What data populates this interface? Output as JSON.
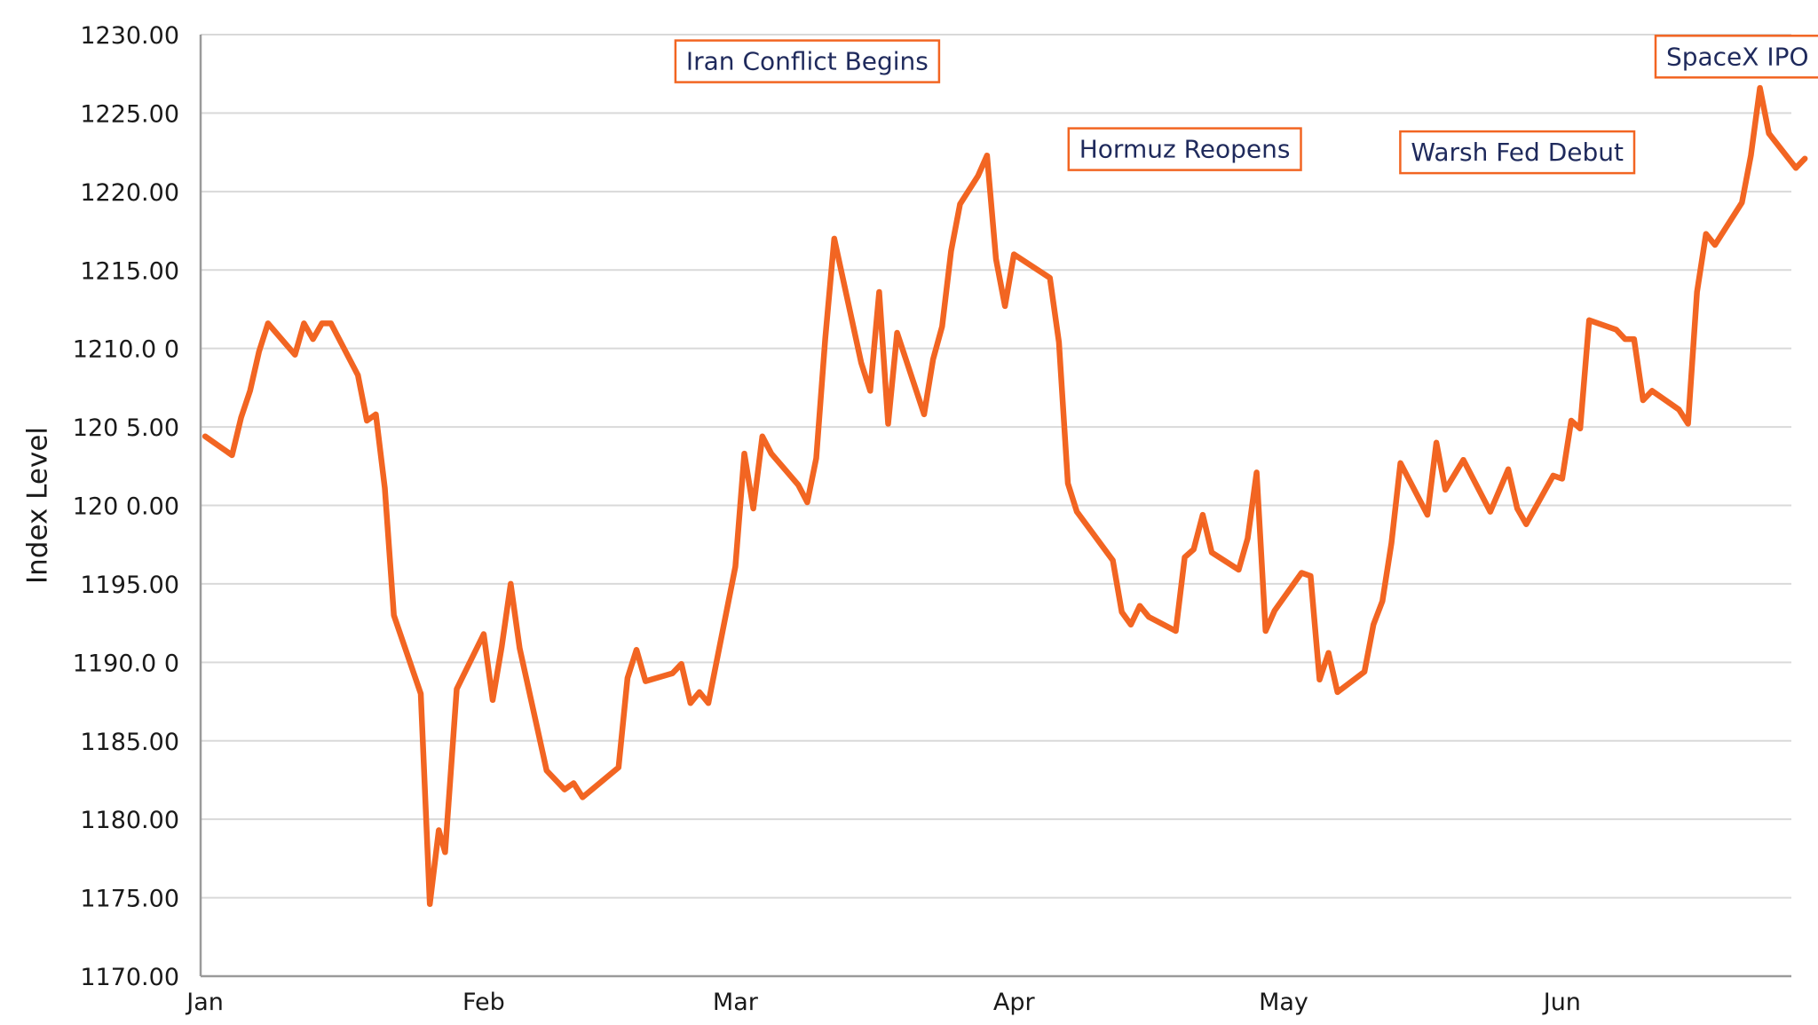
{
  "chart_data": {
    "type": "line",
    "title": "",
    "xlabel": "",
    "ylabel": "Index Level",
    "ylim": [
      1170,
      1230
    ],
    "y_ticks": [
      {
        "value": 1230,
        "label": "1230.00"
      },
      {
        "value": 1225,
        "label": "1225.00"
      },
      {
        "value": 1220,
        "label": "1220.00"
      },
      {
        "value": 1215,
        "label": "1215.00"
      },
      {
        "value": 1210,
        "label": "1210.0 0"
      },
      {
        "value": 1205,
        "label": "120 5.00"
      },
      {
        "value": 1200,
        "label": "120 0.00"
      },
      {
        "value": 1195,
        "label": "1195.00"
      },
      {
        "value": 1190,
        "label": "1190.0 0"
      },
      {
        "value": 1185,
        "label": "1185.00"
      },
      {
        "value": 1180,
        "label": "1180.00"
      },
      {
        "value": 1175,
        "label": "1175.00"
      },
      {
        "value": 1170,
        "label": "1170.00"
      }
    ],
    "x_ticks": [
      {
        "day": 0,
        "label": "Jan"
      },
      {
        "day": 31,
        "label": "Feb"
      },
      {
        "day": 59,
        "label": "Mar"
      },
      {
        "day": 90,
        "label": "Apr"
      },
      {
        "day": 120,
        "label": "May"
      },
      {
        "day": 151,
        "label": "Jun"
      }
    ],
    "xlim": [
      -0.5,
      176.5
    ],
    "grid": true,
    "series": [
      {
        "name": "",
        "color": "#f26522",
        "points": [
          [
            0,
            1204.4
          ],
          [
            3,
            1203.2
          ],
          [
            4,
            1205.6
          ],
          [
            5,
            1207.3
          ],
          [
            6,
            1209.8
          ],
          [
            7,
            1211.6
          ],
          [
            10,
            1209.6
          ],
          [
            11,
            1211.6
          ],
          [
            12,
            1210.6
          ],
          [
            13,
            1211.6
          ],
          [
            14,
            1211.6
          ],
          [
            17,
            1208.3
          ],
          [
            18,
            1205.4
          ],
          [
            19,
            1205.8
          ],
          [
            20,
            1201.1
          ],
          [
            21,
            1193.0
          ],
          [
            24,
            1188.0
          ],
          [
            25,
            1174.6
          ],
          [
            26,
            1179.3
          ],
          [
            26.7,
            1177.9
          ],
          [
            28,
            1188.3
          ],
          [
            31,
            1191.8
          ],
          [
            32,
            1187.6
          ],
          [
            33,
            1191.0
          ],
          [
            34,
            1195.0
          ],
          [
            35,
            1190.9
          ],
          [
            38,
            1183.1
          ],
          [
            40,
            1181.9
          ],
          [
            41,
            1182.3
          ],
          [
            42,
            1181.4
          ],
          [
            46,
            1183.3
          ],
          [
            47,
            1189.0
          ],
          [
            48,
            1190.8
          ],
          [
            49,
            1188.8
          ],
          [
            52,
            1189.3
          ],
          [
            53,
            1189.9
          ],
          [
            54,
            1187.4
          ],
          [
            55,
            1188.1
          ],
          [
            56,
            1187.4
          ],
          [
            59,
            1196.1
          ],
          [
            60,
            1203.3
          ],
          [
            61,
            1199.8
          ],
          [
            62,
            1204.4
          ],
          [
            63,
            1203.3
          ],
          [
            66,
            1201.3
          ],
          [
            67,
            1200.2
          ],
          [
            68,
            1203.0
          ],
          [
            69,
            1210.6
          ],
          [
            70,
            1217.0
          ],
          [
            73,
            1209.1
          ],
          [
            74,
            1207.3
          ],
          [
            75,
            1213.6
          ],
          [
            76,
            1205.2
          ],
          [
            77,
            1211.0
          ],
          [
            80,
            1205.8
          ],
          [
            81,
            1209.3
          ],
          [
            82,
            1211.4
          ],
          [
            83,
            1216.2
          ],
          [
            84,
            1219.2
          ],
          [
            86,
            1221.0
          ],
          [
            87,
            1222.3
          ],
          [
            88,
            1215.7
          ],
          [
            89,
            1212.7
          ],
          [
            90,
            1216.0
          ],
          [
            94,
            1214.5
          ],
          [
            95,
            1210.4
          ],
          [
            96,
            1201.4
          ],
          [
            97,
            1199.6
          ],
          [
            101,
            1196.5
          ],
          [
            102,
            1193.2
          ],
          [
            103,
            1192.4
          ],
          [
            104,
            1193.6
          ],
          [
            105,
            1192.9
          ],
          [
            108,
            1192.0
          ],
          [
            109,
            1196.7
          ],
          [
            110,
            1197.2
          ],
          [
            111,
            1199.4
          ],
          [
            112,
            1197.0
          ],
          [
            115,
            1195.9
          ],
          [
            116,
            1197.9
          ],
          [
            117,
            1202.1
          ],
          [
            118,
            1192.0
          ],
          [
            119,
            1193.3
          ],
          [
            122,
            1195.7
          ],
          [
            123,
            1195.5
          ],
          [
            124,
            1188.9
          ],
          [
            125,
            1190.6
          ],
          [
            126,
            1188.1
          ],
          [
            129,
            1189.4
          ],
          [
            130,
            1192.4
          ],
          [
            131,
            1193.9
          ],
          [
            132,
            1197.6
          ],
          [
            133,
            1202.7
          ],
          [
            136,
            1199.4
          ],
          [
            137,
            1204.0
          ],
          [
            138,
            1201.0
          ],
          [
            140,
            1202.9
          ],
          [
            143,
            1199.6
          ],
          [
            145,
            1202.3
          ],
          [
            146,
            1199.8
          ],
          [
            147,
            1198.8
          ],
          [
            150,
            1201.9
          ],
          [
            151,
            1201.7
          ],
          [
            152,
            1205.4
          ],
          [
            153,
            1204.9
          ],
          [
            154,
            1211.8
          ],
          [
            157,
            1211.2
          ],
          [
            158,
            1210.6
          ],
          [
            159,
            1210.6
          ],
          [
            160,
            1206.7
          ],
          [
            161,
            1207.3
          ],
          [
            164,
            1206.1
          ],
          [
            165,
            1205.2
          ],
          [
            166,
            1213.6
          ],
          [
            167,
            1217.3
          ],
          [
            168,
            1216.6
          ],
          [
            171,
            1219.3
          ],
          [
            172,
            1222.3
          ],
          [
            173,
            1226.6
          ],
          [
            174,
            1223.7
          ],
          [
            177,
            1221.5
          ],
          [
            178,
            1222.1
          ]
        ]
      }
    ],
    "annotations": [
      {
        "label": "Iran Conflict Begins",
        "day": 67,
        "value": 1228.3,
        "anchor": "middle"
      },
      {
        "label": "Hormuz Reopens",
        "day": 109,
        "value": 1222.7,
        "anchor": "middle"
      },
      {
        "label": "Warsh Fed Debut",
        "day": 146,
        "value": 1222.5,
        "anchor": "middle"
      },
      {
        "label": "SpaceX IPO",
        "day": 170.5,
        "value": 1228.6,
        "anchor": "middle"
      }
    ],
    "annotation_style": {
      "border_color": "#f26522",
      "text_color": "#1f2a5c"
    }
  }
}
